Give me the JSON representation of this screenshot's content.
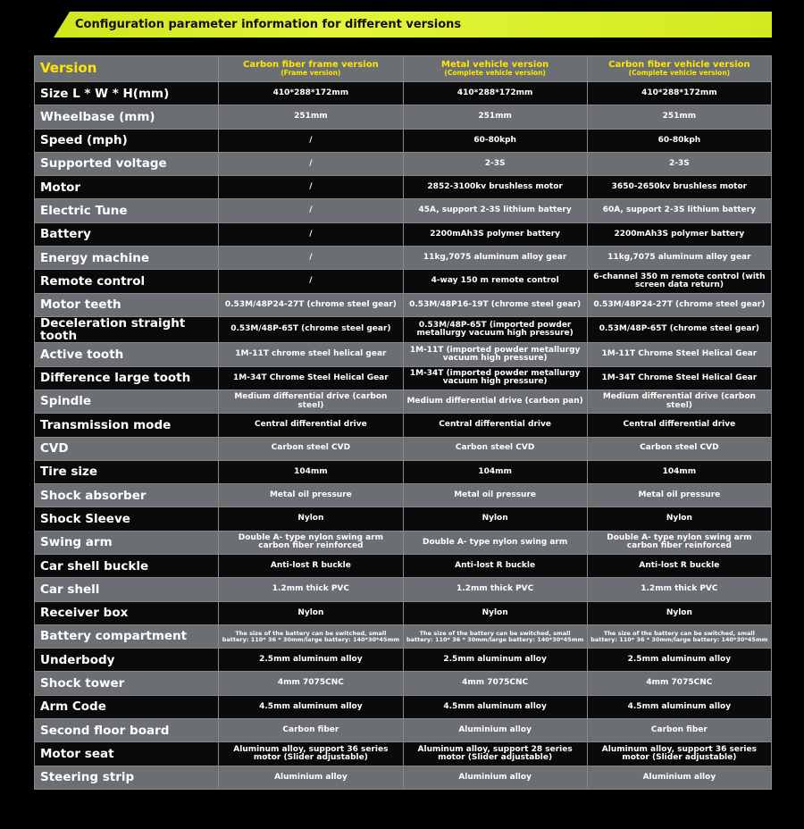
{
  "header": {
    "title": "Configuration parameter information for different versions"
  },
  "table": {
    "corner": "Version",
    "columns": [
      {
        "name": "Carbon fiber frame version",
        "subtitle": "(Frame version)"
      },
      {
        "name": "Metal vehicle version",
        "subtitle": "(Complete vehicle version)"
      },
      {
        "name": "Carbon fiber vehicle version",
        "subtitle": "(Complete vehicle version)"
      }
    ],
    "rows": [
      [
        "Size L * W * H(mm)",
        "410*288*172mm",
        "410*288*172mm",
        "410*288*172mm"
      ],
      [
        "Wheelbase (mm)",
        "251mm",
        "251mm",
        "251mm"
      ],
      [
        "Speed (mph)",
        "/",
        "60-80kph",
        "60-80kph"
      ],
      [
        "Supported voltage",
        "/",
        "2-3S",
        "2-3S"
      ],
      [
        "Motor",
        "/",
        "2852-3100kv brushless motor",
        "3650-2650kv brushless motor"
      ],
      [
        "Electric Tune",
        "/",
        "45A, support 2-3S lithium battery",
        "60A, support 2-3S lithium battery"
      ],
      [
        "Battery",
        "/",
        "2200mAh3S polymer battery",
        "2200mAh3S polymer battery"
      ],
      [
        "Energy machine",
        "/",
        "11kg,7075 aluminum alloy gear",
        "11kg,7075 aluminum alloy gear"
      ],
      [
        "Remote control",
        "/",
        "4-way 150 m remote control",
        "6-channel 350 m remote control (with screen data return)"
      ],
      [
        "Motor teeth",
        "0.53M/48P24-27T (chrome steel gear)",
        "0.53M/48P16-19T (chrome steel gear)",
        "0.53M/48P24-27T (chrome steel gear)"
      ],
      [
        "Deceleration straight tooth",
        "0.53M/48P-65T (chrome steel gear)",
        "0.53M/48P-65T (imported powder metallurgy vacuum high pressure)",
        "0.53M/48P-65T (chrome steel gear)"
      ],
      [
        "Active tooth",
        "1M-11T chrome steel helical gear",
        "1M-11T (imported powder metallurgy vacuum high pressure)",
        "1M-11T Chrome Steel Helical Gear"
      ],
      [
        "Difference large tooth",
        "1M-34T Chrome Steel Helical Gear",
        "1M-34T (imported powder metallurgy vacuum high pressure)",
        "1M-34T Chrome Steel Helical Gear"
      ],
      [
        "Spindle",
        "Medium differential drive (carbon steel)",
        "Medium differential drive (carbon pan)",
        "Medium differential drive (carbon steel)"
      ],
      [
        "Transmission mode",
        "Central differential drive",
        "Central differential drive",
        "Central differential drive"
      ],
      [
        "CVD",
        "Carbon steel CVD",
        "Carbon steel CVD",
        "Carbon steel CVD"
      ],
      [
        "Tire size",
        "104mm",
        "104mm",
        "104mm"
      ],
      [
        "Shock absorber",
        "Metal oil pressure",
        "Metal oil pressure",
        "Metal oil pressure"
      ],
      [
        "Shock Sleeve",
        "Nylon",
        "Nylon",
        "Nylon"
      ],
      [
        "Swing arm",
        "Double A- type nylon swing arm carbon fiber reinforced",
        "Double A- type nylon swing arm",
        "Double A- type nylon swing arm carbon fiber reinforced"
      ],
      [
        "Car shell buckle",
        "Anti-lost R buckle",
        "Anti-lost R buckle",
        "Anti-lost R buckle"
      ],
      [
        "Car shell",
        "1.2mm thick PVC",
        "1.2mm thick PVC",
        "1.2mm thick PVC"
      ],
      [
        "Receiver box",
        "Nylon",
        "Nylon",
        "Nylon"
      ],
      [
        "Battery compartment",
        "The size of the battery can be switched, small battery: 110* 36 * 30mm/large battery: 140*30*45mm",
        "The size of the battery can be switched, small battery: 110* 36 * 30mm/large battery: 140*30*45mm",
        "The size of the battery can be switched, small battery: 110* 36 * 30mm/large battery: 140*30*45mm"
      ],
      [
        "Underbody",
        "2.5mm aluminum alloy",
        "2.5mm aluminum alloy",
        "2.5mm aluminum alloy"
      ],
      [
        "Shock tower",
        "4mm 7075CNC",
        "4mm 7075CNC",
        "4mm 7075CNC"
      ],
      [
        "Arm Code",
        "4.5mm aluminum alloy",
        "4.5mm aluminum alloy",
        "4.5mm aluminum alloy"
      ],
      [
        "Second floor board",
        "Carbon fiber",
        "Aluminium alloy",
        "Carbon fiber"
      ],
      [
        "Motor seat",
        "Aluminum alloy, support 36 series motor (Slider adjustable)",
        "Aluminum alloy, support 28 series motor (Slider adjustable)",
        "Aluminum alloy, support 36 series motor (Slider adjustable)"
      ],
      [
        "Steering strip",
        "Aluminium alloy",
        "Aluminium alloy",
        "Aluminium alloy"
      ]
    ]
  }
}
